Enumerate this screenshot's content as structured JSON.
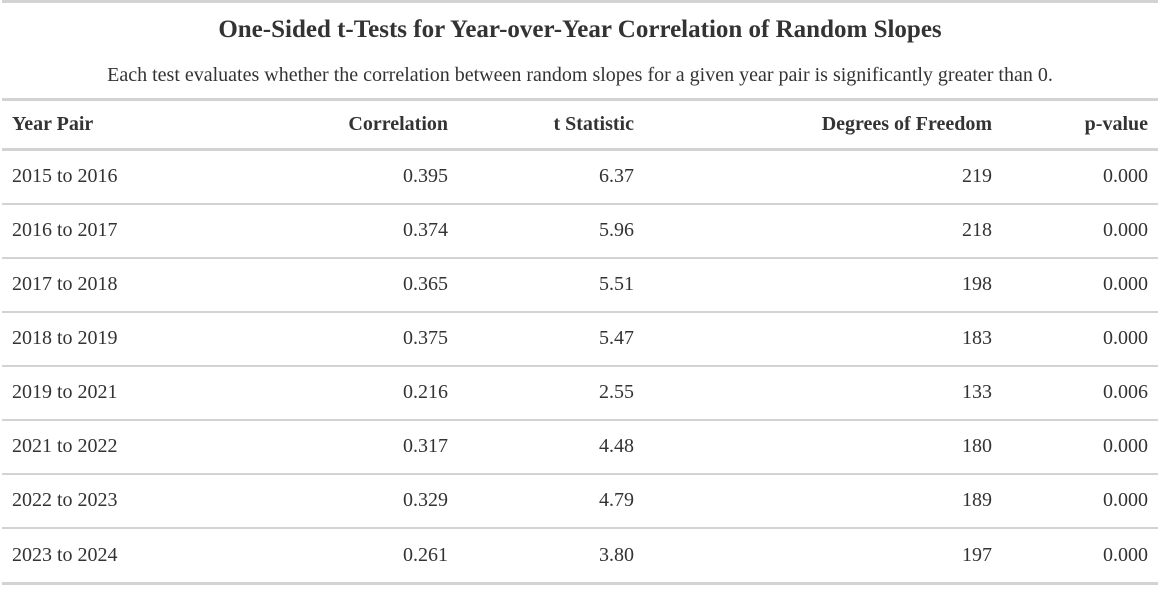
{
  "table": {
    "title": "One-Sided t-Tests for Year-over-Year Correlation of Random Slopes",
    "subtitle": "Each test evaluates whether the correlation between random slopes for a given year pair is significantly greater than 0.",
    "columns": [
      "Year Pair",
      "Correlation",
      "t Statistic",
      "Degrees of Freedom",
      "p-value"
    ],
    "rows": [
      [
        "2015 to 2016",
        "0.395",
        "6.37",
        "219",
        "0.000"
      ],
      [
        "2016 to 2017",
        "0.374",
        "5.96",
        "218",
        "0.000"
      ],
      [
        "2017 to 2018",
        "0.365",
        "5.51",
        "198",
        "0.000"
      ],
      [
        "2018 to 2019",
        "0.375",
        "5.47",
        "183",
        "0.000"
      ],
      [
        "2019 to 2021",
        "0.216",
        "2.55",
        "133",
        "0.006"
      ],
      [
        "2021 to 2022",
        "0.317",
        "4.48",
        "180",
        "0.000"
      ],
      [
        "2022 to 2023",
        "0.329",
        "4.79",
        "189",
        "0.000"
      ],
      [
        "2023 to 2024",
        "0.261",
        "3.80",
        "197",
        "0.000"
      ]
    ]
  }
}
